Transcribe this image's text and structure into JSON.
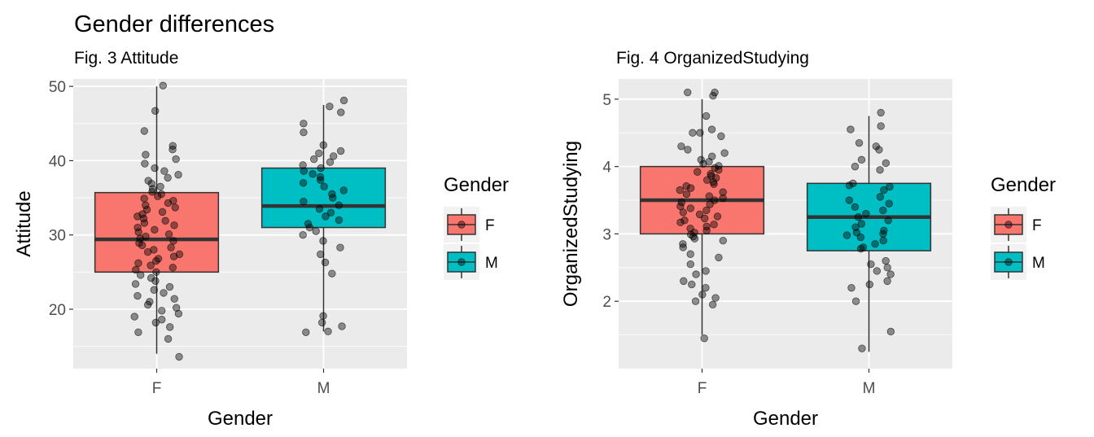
{
  "figure": {
    "title": "Gender differences"
  },
  "chart_data": [
    {
      "type": "boxplot",
      "title": "Fig. 3 Attitude",
      "xlabel": "Gender",
      "ylabel": "Attitude",
      "categories": [
        "F",
        "M"
      ],
      "ylim": [
        12,
        51
      ],
      "yticks": [
        20,
        30,
        40,
        50
      ],
      "grid": true,
      "legend": {
        "title": "Gender",
        "position": "right",
        "entries": [
          {
            "label": "F",
            "color": "#F8766D"
          },
          {
            "label": "M",
            "color": "#00BFC4"
          }
        ]
      },
      "boxes": [
        {
          "category": "F",
          "min": 14,
          "q1": 25,
          "median": 29.4,
          "q3": 35.7,
          "max": 50,
          "color": "#F8766D"
        },
        {
          "category": "M",
          "min": 17,
          "q1": 31,
          "median": 33.9,
          "q3": 39,
          "max": 47.5,
          "color": "#00BFC4"
        }
      ],
      "points": [
        {
          "category": "F",
          "values": [
            50.1,
            46.7,
            44,
            42,
            41.5,
            40.8,
            40.2,
            39.6,
            39,
            38.6,
            38.1,
            37.7,
            37.3,
            36.9,
            36.5,
            36.2,
            35.8,
            35.5,
            35.2,
            34.9,
            34.6,
            34.3,
            34,
            33.7,
            33.4,
            33.1,
            32.8,
            32.5,
            32.2,
            31.9,
            31.6,
            31.3,
            31,
            30.7,
            30.4,
            30.1,
            29.8,
            29.5,
            29.2,
            28.9,
            28.6,
            28.3,
            28,
            27.7,
            27.4,
            27.1,
            26.8,
            26.5,
            26.2,
            25.9,
            25.6,
            25.3,
            25,
            24.6,
            24.2,
            23.8,
            23.4,
            23,
            22.6,
            22.2,
            21.8,
            21.4,
            21,
            20.6,
            20.2,
            19.8,
            19.4,
            19,
            18.6,
            18.2,
            17.6,
            16.9,
            16,
            13.6
          ]
        },
        {
          "category": "M",
          "values": [
            48.1,
            47.3,
            46.5,
            45,
            43.8,
            42.1,
            41.3,
            41,
            40.6,
            40.2,
            39.8,
            39.4,
            39,
            38.6,
            38.2,
            37.8,
            37.4,
            37,
            36.5,
            36,
            35.5,
            35,
            34.5,
            34,
            33.5,
            33,
            32.5,
            32,
            31.5,
            31,
            30.5,
            30,
            29.2,
            28.3,
            27.4,
            26.3,
            24.8,
            19.1,
            18.2,
            17.7,
            17,
            16.9
          ]
        }
      ]
    },
    {
      "type": "boxplot",
      "title": "Fig. 4 OrganizedStudying",
      "xlabel": "Gender",
      "ylabel": "OrganizedStudying",
      "categories": [
        "F",
        "M"
      ],
      "ylim": [
        1,
        5.3
      ],
      "yticks": [
        2,
        3,
        4,
        5
      ],
      "grid": true,
      "legend": {
        "title": "Gender",
        "position": "right",
        "entries": [
          {
            "label": "F",
            "color": "#F8766D"
          },
          {
            "label": "M",
            "color": "#00BFC4"
          }
        ]
      },
      "boxes": [
        {
          "category": "F",
          "min": 1.5,
          "q1": 3,
          "median": 3.5,
          "q3": 4,
          "max": 5,
          "color": "#F8766D"
        },
        {
          "category": "M",
          "min": 1.25,
          "q1": 2.75,
          "median": 3.25,
          "q3": 3.75,
          "max": 4.75,
          "color": "#00BFC4"
        }
      ],
      "points": [
        {
          "category": "F",
          "values": [
            5.1,
            5.1,
            5.05,
            4.75,
            4.55,
            4.5,
            4.5,
            4.45,
            4.3,
            4.25,
            4.2,
            4.15,
            4.1,
            4.07,
            4.04,
            4.01,
            3.98,
            3.95,
            3.92,
            3.89,
            3.86,
            3.83,
            3.8,
            3.77,
            3.74,
            3.71,
            3.68,
            3.65,
            3.62,
            3.59,
            3.56,
            3.53,
            3.5,
            3.47,
            3.44,
            3.41,
            3.38,
            3.35,
            3.32,
            3.29,
            3.26,
            3.23,
            3.2,
            3.17,
            3.14,
            3.11,
            3.08,
            3.05,
            3.02,
            2.99,
            2.96,
            2.93,
            2.9,
            2.85,
            2.8,
            2.7,
            2.65,
            2.55,
            2.45,
            2.4,
            2.3,
            2.25,
            2.2,
            2.1,
            2.05,
            2,
            1.95,
            1.45
          ]
        },
        {
          "category": "M",
          "values": [
            4.8,
            4.6,
            4.55,
            4.35,
            4.3,
            4.25,
            4.1,
            4.05,
            4,
            3.95,
            3.75,
            3.72,
            3.7,
            3.65,
            3.55,
            3.5,
            3.45,
            3.4,
            3.35,
            3.3,
            3.25,
            3.2,
            3.15,
            3.1,
            3.05,
            3.02,
            3,
            2.98,
            2.95,
            2.9,
            2.85,
            2.8,
            2.78,
            2.6,
            2.55,
            2.5,
            2.45,
            2.4,
            2.3,
            2.25,
            2.2,
            2,
            1.55,
            1.3
          ]
        }
      ]
    }
  ]
}
